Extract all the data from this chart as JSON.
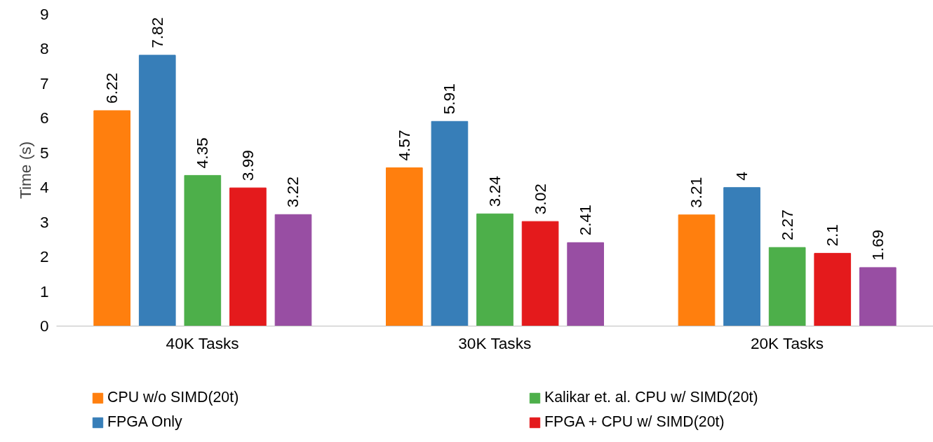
{
  "chart_data": {
    "type": "bar",
    "ylabel": "Time (s)",
    "categories": [
      "40K Tasks",
      "30K Tasks",
      "20K Tasks"
    ],
    "series": [
      {
        "name": "CPU w/o SIMD(20t)",
        "color": "#ff7f0e",
        "values": [
          6.22,
          4.57,
          3.21
        ]
      },
      {
        "name": "FPGA Only",
        "color": "#377eb8",
        "values": [
          7.82,
          5.91,
          4
        ]
      },
      {
        "name": "Kalikar et. al. CPU w/ SIMD(20t)",
        "color": "#4daf4a",
        "values": [
          4.35,
          3.24,
          2.27
        ]
      },
      {
        "name": "FPGA + CPU w/ SIMD(20t)",
        "color": "#e41a1c",
        "values": [
          3.99,
          3.02,
          2.1
        ]
      },
      {
        "color": "#984ea3",
        "values": [
          3.22,
          2.41,
          1.69
        ]
      }
    ],
    "ylim": [
      0,
      9
    ],
    "yticks": [
      0,
      1,
      2,
      3,
      4,
      5,
      6,
      7,
      8,
      9
    ],
    "data_labels": true,
    "legend": "bottom"
  }
}
